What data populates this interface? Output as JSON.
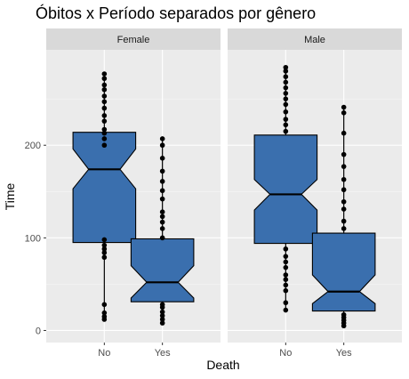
{
  "chart_data": {
    "type": "boxplot",
    "title": "Óbitos x Período separados por gênero",
    "xlabel": "Death",
    "ylabel": "Time",
    "categories": [
      "No",
      "Yes"
    ],
    "y_ticks": [
      0,
      100,
      200
    ],
    "ylim": [
      -13,
      303
    ],
    "notched": true,
    "fill_color": "#3a6fae",
    "panels": [
      {
        "name": "Female",
        "boxes": [
          {
            "category": "No",
            "lower_whisker": 12,
            "q1": 95,
            "median": 174,
            "q3": 214,
            "upper_whisker": 277,
            "notch_low": 153,
            "notch_high": 196,
            "outliers": [
              12,
              15,
              19,
              28,
              79,
              84,
              88,
              92,
              98,
              200,
              207,
              213,
              217,
              226,
              232,
              240,
              247,
              253,
              260,
              265,
              272,
              277
            ]
          },
          {
            "category": "Yes",
            "lower_whisker": 8,
            "q1": 31,
            "median": 52,
            "q3": 99,
            "upper_whisker": 207,
            "notch_low": 35,
            "notch_high": 70,
            "outliers": [
              8,
              12,
              16,
              20,
              25,
              28,
              100,
              110,
              117,
              123,
              128,
              142,
              151,
              161,
              172,
              186,
              200,
              207
            ]
          }
        ]
      },
      {
        "name": "Male",
        "boxes": [
          {
            "category": "No",
            "lower_whisker": 22,
            "q1": 94,
            "median": 147,
            "q3": 211,
            "upper_whisker": 284,
            "notch_low": 130,
            "notch_high": 163,
            "outliers": [
              22,
              30,
              43,
              49,
              55,
              60,
              68,
              74,
              80,
              88,
              215,
              222,
              228,
              236,
              244,
              250,
              256,
              262,
              268,
              274,
              280,
              284
            ]
          },
          {
            "category": "Yes",
            "lower_whisker": 5,
            "q1": 21,
            "median": 42,
            "q3": 105,
            "upper_whisker": 241,
            "notch_low": 29,
            "notch_high": 60,
            "outliers": [
              5,
              8,
              11,
              14,
              17,
              110,
              118,
              131,
              139,
              152,
              163,
              177,
              190,
              213,
              235,
              241
            ]
          }
        ]
      }
    ]
  }
}
